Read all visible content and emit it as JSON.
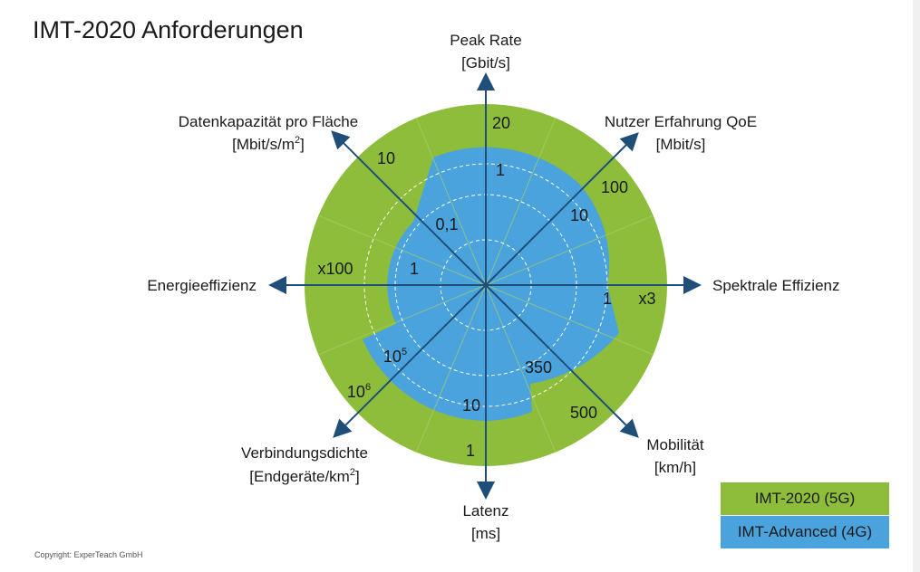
{
  "title": "IMT-2020 Anforderungen",
  "copyright": "Copyright: ExperTeach GmbH",
  "colors": {
    "imt2020": "#8dbd3a",
    "imt_advanced": "#4aa3dc",
    "axis": "#1f4e79"
  },
  "legend": {
    "imt2020": "IMT-2020 (5G)",
    "imt_advanced": "IMT-Advanced (4G)"
  },
  "axes": {
    "peak_rate": {
      "name": "Peak Rate",
      "unit": "[Gbit/s]",
      "imt_advanced": "1",
      "imt2020": "20"
    },
    "qoe": {
      "name": "Nutzer Erfahrung QoE",
      "unit": "[Mbit/s]",
      "imt_advanced": "10",
      "imt2020": "100"
    },
    "spectral": {
      "name": "Spektrale Effizienz",
      "imt_advanced": "1",
      "imt2020": "x3"
    },
    "mobility": {
      "name": "Mobilität",
      "unit": "[km/h]",
      "imt_advanced": "350",
      "imt2020": "500"
    },
    "latency": {
      "name": "Latenz",
      "unit": "[ms]",
      "imt_advanced": "10",
      "imt2020": "1"
    },
    "connection_density": {
      "name": "Verbindungsdichte",
      "unit": "[Endgeräte/km",
      "unit_sup": "2",
      "unit_end": "]",
      "imt_advanced_base": "10",
      "imt_advanced_exp": "5",
      "imt2020_base": "10",
      "imt2020_exp": "6"
    },
    "energy": {
      "name": "Energieeffizienz",
      "imt_advanced": "1",
      "imt2020": "x100"
    },
    "area_capacity": {
      "name": "Datenkapazität pro Fläche",
      "unit": "[Mbit/s/m",
      "unit_sup": "2",
      "unit_end": "]",
      "imt_advanced": "0,1",
      "imt2020": "10"
    }
  }
}
